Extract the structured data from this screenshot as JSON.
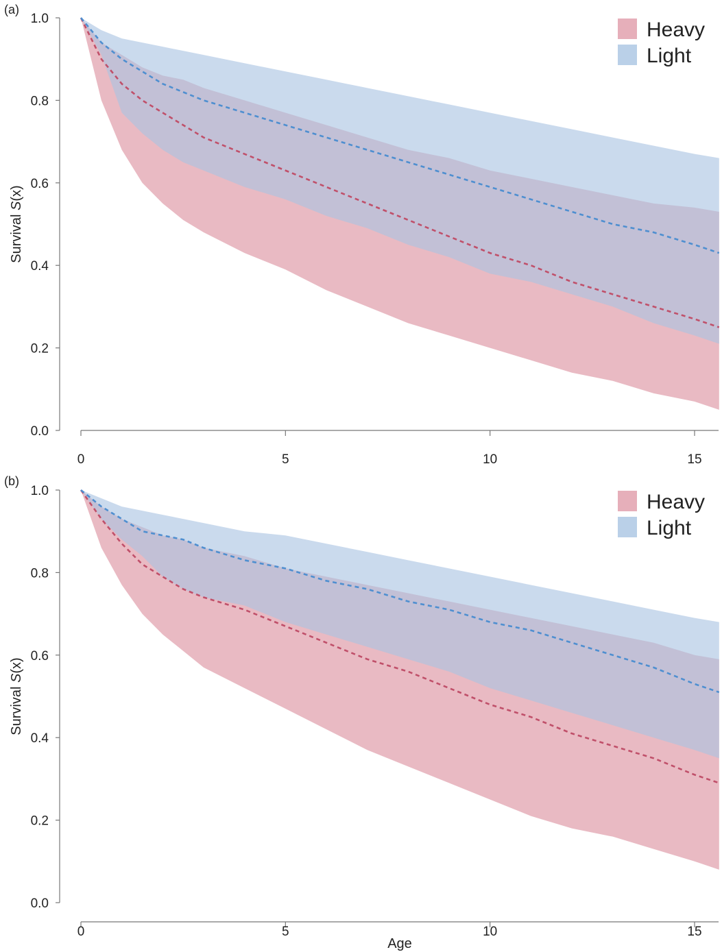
{
  "colors": {
    "heavy_band": "#e3a6b2",
    "light_band": "#a9c4e2",
    "heavy_line": "#c0506a",
    "light_line": "#4f8fd0"
  },
  "chart_data": [
    {
      "type": "area",
      "panel_label": "(a)",
      "ylabel_prefix": "Survival ",
      "ylabel_var": "S",
      "ylabel_arg": "(x)",
      "xlabel": "",
      "xlim": [
        -0.5,
        15.6
      ],
      "ylim": [
        0,
        1
      ],
      "xticks": [
        0,
        5,
        10,
        15
      ],
      "yticks": [
        0.0,
        0.2,
        0.4,
        0.6,
        0.8,
        1.0
      ],
      "xtick_labels": [
        "0",
        "5",
        "10",
        "15"
      ],
      "ytick_labels": [
        "0.0",
        "0.2",
        "0.4",
        "0.6",
        "0.8",
        "1.0"
      ],
      "legend": [
        "Heavy",
        "Light"
      ],
      "legend_position": "top-right",
      "x": [
        0,
        0.5,
        1,
        1.5,
        2,
        2.5,
        3,
        4,
        5,
        6,
        7,
        8,
        9,
        10,
        11,
        12,
        13,
        14,
        15,
        15.6
      ],
      "series": [
        {
          "name": "Heavy",
          "color_key": "heavy",
          "lower": [
            1.0,
            0.8,
            0.68,
            0.6,
            0.55,
            0.51,
            0.48,
            0.43,
            0.39,
            0.34,
            0.3,
            0.26,
            0.23,
            0.2,
            0.17,
            0.14,
            0.12,
            0.09,
            0.07,
            0.05
          ],
          "median": [
            1.0,
            0.9,
            0.84,
            0.8,
            0.77,
            0.74,
            0.71,
            0.67,
            0.63,
            0.59,
            0.55,
            0.51,
            0.47,
            0.43,
            0.4,
            0.36,
            0.33,
            0.3,
            0.27,
            0.25
          ],
          "upper": [
            1.0,
            0.94,
            0.91,
            0.88,
            0.86,
            0.85,
            0.83,
            0.8,
            0.77,
            0.74,
            0.71,
            0.68,
            0.66,
            0.63,
            0.61,
            0.59,
            0.57,
            0.55,
            0.54,
            0.53
          ]
        },
        {
          "name": "Light",
          "color_key": "light",
          "lower": [
            1.0,
            0.91,
            0.77,
            0.72,
            0.68,
            0.65,
            0.63,
            0.59,
            0.56,
            0.52,
            0.49,
            0.45,
            0.42,
            0.38,
            0.36,
            0.33,
            0.3,
            0.26,
            0.23,
            0.21
          ],
          "median": [
            1.0,
            0.94,
            0.9,
            0.87,
            0.84,
            0.82,
            0.8,
            0.77,
            0.74,
            0.71,
            0.68,
            0.65,
            0.62,
            0.59,
            0.56,
            0.53,
            0.5,
            0.48,
            0.45,
            0.43
          ],
          "upper": [
            1.0,
            0.97,
            0.95,
            0.94,
            0.93,
            0.92,
            0.91,
            0.89,
            0.87,
            0.85,
            0.83,
            0.81,
            0.79,
            0.77,
            0.75,
            0.73,
            0.71,
            0.69,
            0.67,
            0.66
          ]
        }
      ]
    },
    {
      "type": "area",
      "panel_label": "(b)",
      "ylabel_prefix": "Survival ",
      "ylabel_var": "S",
      "ylabel_arg": "(x)",
      "xlabel": "Age",
      "xlim": [
        -0.5,
        15.6
      ],
      "ylim": [
        0,
        1
      ],
      "xticks": [
        0,
        5,
        10,
        15
      ],
      "yticks": [
        0.0,
        0.2,
        0.4,
        0.6,
        0.8,
        1.0
      ],
      "xtick_labels": [
        "0",
        "5",
        "10",
        "15"
      ],
      "ytick_labels": [
        "0.0",
        "0.2",
        "0.4",
        "0.6",
        "0.8",
        "1.0"
      ],
      "legend": [
        "Heavy",
        "Light"
      ],
      "legend_position": "top-right",
      "x": [
        0,
        0.5,
        1,
        1.5,
        2,
        2.5,
        3,
        4,
        5,
        6,
        7,
        8,
        9,
        10,
        11,
        12,
        13,
        14,
        15,
        15.6
      ],
      "series": [
        {
          "name": "Heavy",
          "color_key": "heavy",
          "lower": [
            1.0,
            0.86,
            0.77,
            0.7,
            0.65,
            0.61,
            0.57,
            0.52,
            0.47,
            0.42,
            0.37,
            0.33,
            0.29,
            0.25,
            0.21,
            0.18,
            0.16,
            0.13,
            0.1,
            0.08
          ],
          "median": [
            1.0,
            0.93,
            0.87,
            0.82,
            0.79,
            0.76,
            0.74,
            0.71,
            0.67,
            0.63,
            0.59,
            0.56,
            0.52,
            0.48,
            0.45,
            0.41,
            0.38,
            0.35,
            0.31,
            0.29
          ],
          "upper": [
            1.0,
            0.96,
            0.93,
            0.91,
            0.89,
            0.88,
            0.86,
            0.84,
            0.81,
            0.79,
            0.77,
            0.75,
            0.73,
            0.71,
            0.69,
            0.67,
            0.65,
            0.63,
            0.6,
            0.59
          ]
        },
        {
          "name": "Light",
          "color_key": "light",
          "lower": [
            1.0,
            0.93,
            0.88,
            0.84,
            0.79,
            0.76,
            0.74,
            0.72,
            0.68,
            0.65,
            0.62,
            0.59,
            0.56,
            0.52,
            0.49,
            0.46,
            0.43,
            0.4,
            0.37,
            0.35
          ],
          "median": [
            1.0,
            0.96,
            0.93,
            0.9,
            0.89,
            0.88,
            0.86,
            0.83,
            0.81,
            0.78,
            0.76,
            0.73,
            0.71,
            0.68,
            0.66,
            0.63,
            0.6,
            0.57,
            0.53,
            0.51
          ],
          "upper": [
            1.0,
            0.98,
            0.96,
            0.95,
            0.94,
            0.93,
            0.92,
            0.9,
            0.89,
            0.87,
            0.85,
            0.83,
            0.81,
            0.79,
            0.77,
            0.75,
            0.73,
            0.71,
            0.69,
            0.68
          ]
        }
      ]
    }
  ]
}
